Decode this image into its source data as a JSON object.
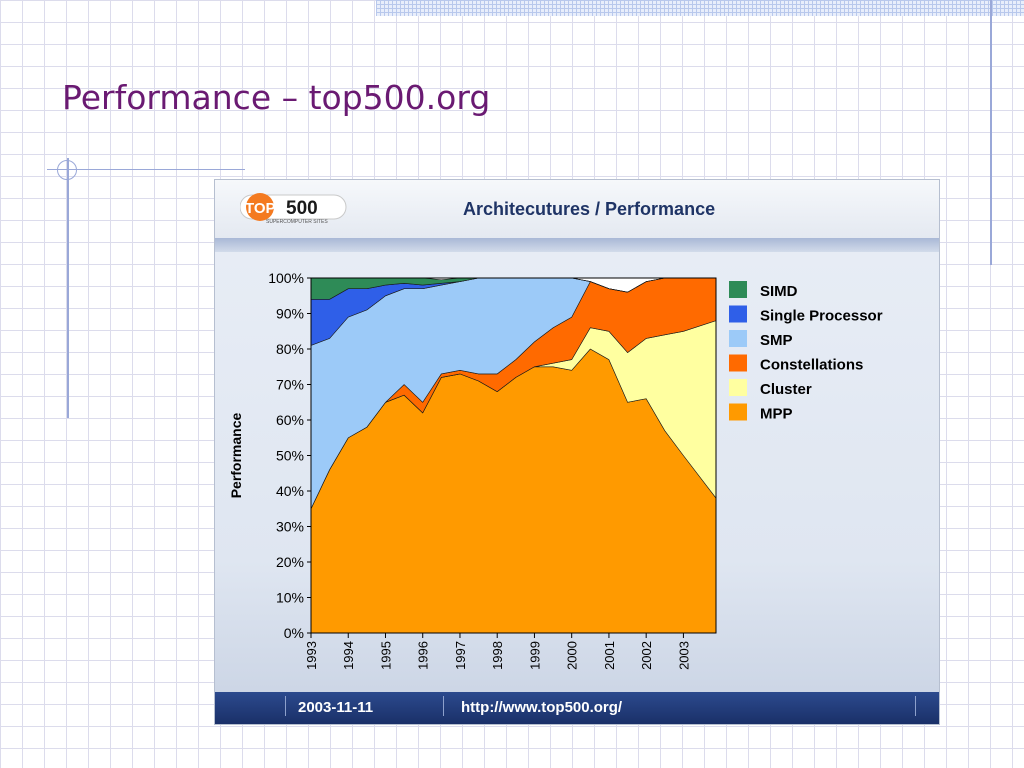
{
  "slide": {
    "title": "Performance – top500.org"
  },
  "panel": {
    "logo_text_top": "TOP",
    "logo_text_num": "500",
    "logo_subtext": "SUPERCOMPUTER SITES",
    "title": "Architecutures / Performance",
    "footer_date": "2003-11-11",
    "footer_url": "http://www.top500.org/"
  },
  "colors": {
    "SIMD": "#2e8b57",
    "Single Processor": "#2f5fe8",
    "SMP": "#9ccaf8",
    "Constellations": "#ff6a00",
    "Cluster": "#ffffa0",
    "MPP": "#ff9a00"
  },
  "chart_data": {
    "type": "area",
    "stacked": true,
    "ylabel": "Performance",
    "ylim": [
      0,
      100
    ],
    "yticks": [
      "0%",
      "10%",
      "20%",
      "30%",
      "40%",
      "50%",
      "60%",
      "70%",
      "80%",
      "90%",
      "100%"
    ],
    "xlim": [
      1993,
      2003.875
    ],
    "xticks": [
      "1993",
      "1994",
      "1995",
      "1996",
      "1997",
      "1998",
      "1999",
      "2000",
      "2001",
      "2002",
      "2003"
    ],
    "x": [
      1993,
      1993.5,
      1994,
      1994.5,
      1995,
      1995.5,
      1996,
      1996.5,
      1997,
      1997.5,
      1998,
      1998.5,
      1999,
      1999.5,
      2000,
      2000.5,
      2001,
      2001.5,
      2002,
      2002.5,
      2003,
      2003.875
    ],
    "series": [
      {
        "name": "MPP",
        "values": [
          35,
          46,
          55,
          58,
          65,
          67,
          62,
          72,
          73,
          71,
          68,
          72,
          75,
          75,
          74,
          80,
          77,
          65,
          66,
          57,
          50,
          38
        ]
      },
      {
        "name": "Cluster",
        "values": [
          0,
          0,
          0,
          0,
          0,
          0,
          0,
          0,
          0,
          0,
          0,
          0,
          0,
          1,
          3,
          6,
          8,
          14,
          17,
          27,
          35,
          50
        ]
      },
      {
        "name": "Constellations",
        "values": [
          0,
          0,
          0,
          0,
          0,
          3,
          3,
          1,
          1,
          2,
          5,
          5,
          7,
          10,
          12,
          13,
          12,
          17,
          16,
          16,
          15,
          12
        ]
      },
      {
        "name": "SMP",
        "values": [
          46,
          37,
          34,
          33,
          30,
          27,
          32,
          25,
          25,
          27,
          27,
          23,
          18,
          14,
          11,
          0,
          0,
          0,
          0,
          0,
          0,
          0
        ]
      },
      {
        "name": "Single Processor",
        "values": [
          13,
          11,
          8,
          6,
          3,
          1.5,
          1,
          0.5,
          0,
          0,
          0,
          0,
          0,
          0,
          0,
          0,
          0,
          0,
          0,
          0,
          0,
          0
        ]
      },
      {
        "name": "SIMD",
        "values": [
          6,
          6,
          3,
          3,
          2,
          1.5,
          2,
          1,
          1,
          0,
          0,
          0,
          0,
          0,
          0,
          0,
          0,
          0,
          0,
          0,
          0,
          0
        ]
      }
    ],
    "legend": [
      "SIMD",
      "Single Processor",
      "SMP",
      "Constellations",
      "Cluster",
      "MPP"
    ],
    "legend_position": "right",
    "grid": false
  }
}
